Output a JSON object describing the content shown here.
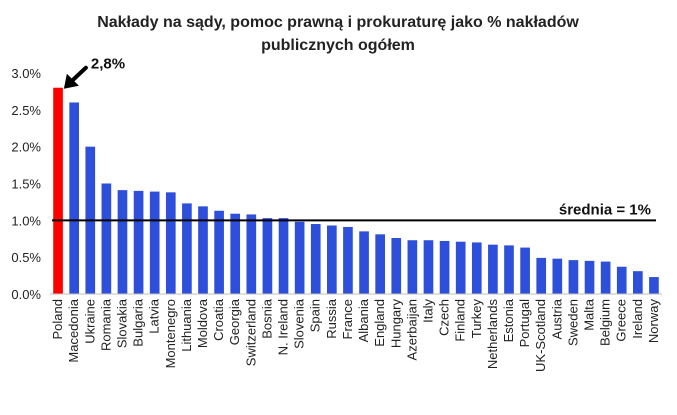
{
  "chart_data": {
    "type": "bar",
    "title": [
      "Nakłady na sądy, pomoc prawną i prokuraturę jako % nakładów",
      "publicznych ogółem"
    ],
    "xlabel": "",
    "ylabel": "",
    "ylim": [
      0,
      3.0
    ],
    "yticks": [
      "0.0%",
      "0.5%",
      "1.0%",
      "1.5%",
      "2.0%",
      "2.5%",
      "3.0%"
    ],
    "grid": false,
    "categories": [
      "Poland",
      "Macedonia",
      "Ukraine",
      "Romania",
      "Slovakia",
      "Bulgaria",
      "Latvia",
      "Montenegro",
      "Lithuania",
      "Moldova",
      "Croatia",
      "Georgia",
      "Switzerland",
      "Bosnia",
      "N. Ireland",
      "Slovenia",
      "Spain",
      "Russia",
      "France",
      "Albania",
      "England",
      "Hungary",
      "Azerbaijan",
      "Italy",
      "Czech",
      "Finland",
      "Turkey",
      "Netherlands",
      "Estonia",
      "Portugal",
      "UK-Scotland",
      "Austria",
      "Sweden",
      "Malta",
      "Belgium",
      "Greece",
      "Ireland",
      "Norway"
    ],
    "values": [
      2.8,
      2.6,
      2.0,
      1.5,
      1.41,
      1.4,
      1.39,
      1.38,
      1.23,
      1.19,
      1.13,
      1.09,
      1.08,
      1.03,
      1.03,
      0.98,
      0.95,
      0.93,
      0.91,
      0.85,
      0.81,
      0.76,
      0.73,
      0.73,
      0.72,
      0.71,
      0.7,
      0.67,
      0.66,
      0.63,
      0.49,
      0.48,
      0.46,
      0.45,
      0.44,
      0.37,
      0.31,
      0.23
    ],
    "highlight_index": 0,
    "highlight_color": "#ff0000",
    "bar_color": "#2e4fd9",
    "reference_line": {
      "value": 1.0,
      "label": "średnia = 1%"
    },
    "annotation": {
      "label": "2,8%",
      "target_index": 0
    }
  }
}
